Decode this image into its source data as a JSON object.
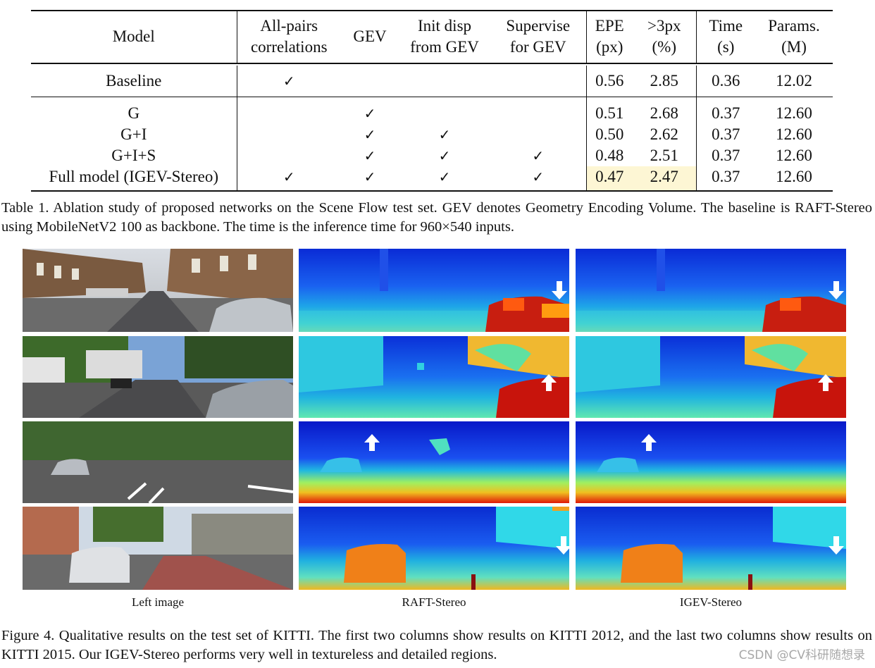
{
  "table": {
    "headers": {
      "model": "Model",
      "allpairs_l1": "All-pairs",
      "allpairs_l2": "correlations",
      "gev": "GEV",
      "init_l1": "Init disp",
      "init_l2": "from GEV",
      "sup_l1": "Supervise",
      "sup_l2": "for GEV",
      "epe_l1": "EPE",
      "epe_l2": "(px)",
      "px3_l1": ">3px",
      "px3_l2": "(%)",
      "time_l1": "Time",
      "time_l2": "(s)",
      "params_l1": "Params.",
      "params_l2": "(M)"
    },
    "check": "✓",
    "rows": [
      {
        "model": "Baseline",
        "allpairs": "✓",
        "gev": "",
        "init": "",
        "sup": "",
        "epe": "0.56",
        "px3": "2.85",
        "time": "0.36",
        "params": "12.02"
      },
      {
        "model": "G",
        "allpairs": "",
        "gev": "✓",
        "init": "",
        "sup": "",
        "epe": "0.51",
        "px3": "2.68",
        "time": "0.37",
        "params": "12.60"
      },
      {
        "model": "G+I",
        "allpairs": "",
        "gev": "✓",
        "init": "✓",
        "sup": "",
        "epe": "0.50",
        "px3": "2.62",
        "time": "0.37",
        "params": "12.60"
      },
      {
        "model": "G+I+S",
        "allpairs": "",
        "gev": "✓",
        "init": "✓",
        "sup": "✓",
        "epe": "0.48",
        "px3": "2.51",
        "time": "0.37",
        "params": "12.60"
      },
      {
        "model": "Full model (IGEV-Stereo)",
        "allpairs": "✓",
        "gev": "✓",
        "init": "✓",
        "sup": "✓",
        "epe": "0.47",
        "px3": "2.47",
        "time": "0.37",
        "params": "12.60"
      }
    ],
    "highlight_color": "#fdf6d4"
  },
  "table_caption": "Table 1. Ablation study of proposed networks on the Scene Flow test set. GEV denotes Geometry Encoding Volume. The baseline is RAFT-Stereo using MobileNetV2 100 as backbone. The time is the inference time for 960×540 inputs.",
  "figure": {
    "columns": [
      "Left image",
      "RAFT-Stereo",
      "IGEV-Stereo"
    ]
  },
  "figure_caption": "Figure 4. Qualitative results on the test set of KITTI. The first two columns show results on KITTI 2012, and the last two columns show results on KITTI 2015. Our IGEV-Stereo performs very well in textureless and detailed regions.",
  "watermark": "CSDN @CV科研随想录"
}
